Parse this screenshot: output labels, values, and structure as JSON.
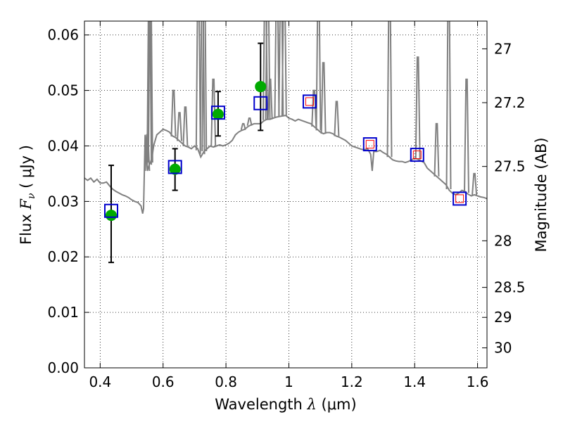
{
  "chart_data": {
    "type": "scatter",
    "xlabel": {
      "prefix": "Wavelength ",
      "symbol": "λ",
      "units": " (μm)"
    },
    "ylabel": {
      "prefix": "Flux ",
      "symbol": "F",
      "subscript": "ν",
      "units": " ( μJy )"
    },
    "y2label": "Magnitude (AB)",
    "xlim": [
      0.35,
      1.63
    ],
    "ylim": [
      0.0,
      0.0625
    ],
    "grid": true,
    "x_ticks": [
      0.4,
      0.6,
      0.8,
      1.0,
      1.2,
      1.4,
      1.6
    ],
    "x_tick_labels": [
      "0.4",
      "0.6",
      "0.8",
      "1",
      "1.2",
      "1.4",
      "1.6"
    ],
    "y_ticks": [
      0.0,
      0.01,
      0.02,
      0.03,
      0.04,
      0.05,
      0.06
    ],
    "y_tick_labels": [
      "0.00",
      "0.01",
      "0.02",
      "0.03",
      "0.04",
      "0.05",
      "0.06"
    ],
    "y2_ticks": [
      {
        "label": "27",
        "flux": 0.0575
      },
      {
        "label": "27.2",
        "flux": 0.0478
      },
      {
        "label": "27.5",
        "flux": 0.0363
      },
      {
        "label": "28",
        "flux": 0.0229
      },
      {
        "label": "28.5",
        "flux": 0.0145
      },
      {
        "label": "29",
        "flux": 0.0091
      },
      {
        "label": "30",
        "flux": 0.0036
      }
    ],
    "colors": {
      "sed": "#808080",
      "observed": "#00aa00",
      "model_box": "#0000cc",
      "inner_box": "#ff0000",
      "errorbar": "#000000"
    },
    "series": [
      {
        "kind": "sed_line",
        "points": [
          [
            0.35,
            0.0342
          ],
          [
            0.36,
            0.0338
          ],
          [
            0.37,
            0.0342
          ],
          [
            0.38,
            0.0335
          ],
          [
            0.39,
            0.034
          ],
          [
            0.4,
            0.0333
          ],
          [
            0.41,
            0.0333
          ],
          [
            0.42,
            0.0335
          ],
          [
            0.43,
            0.0328
          ],
          [
            0.44,
            0.0322
          ],
          [
            0.45,
            0.0318
          ],
          [
            0.46,
            0.0315
          ],
          [
            0.47,
            0.0312
          ],
          [
            0.48,
            0.031
          ],
          [
            0.49,
            0.0307
          ],
          [
            0.5,
            0.0303
          ],
          [
            0.51,
            0.03
          ],
          [
            0.52,
            0.0298
          ],
          [
            0.53,
            0.0292
          ],
          [
            0.535,
            0.0278
          ],
          [
            0.538,
            0.0287
          ],
          [
            0.541,
            0.037
          ],
          [
            0.543,
            0.042
          ],
          [
            0.55,
            0.0355
          ],
          [
            0.555,
            0.0365
          ],
          [
            0.56,
            0.037
          ],
          [
            0.565,
            0.038
          ],
          [
            0.57,
            0.04
          ],
          [
            0.575,
            0.041
          ],
          [
            0.58,
            0.042
          ],
          [
            0.59,
            0.0425
          ],
          [
            0.6,
            0.043
          ],
          [
            0.61,
            0.0428
          ],
          [
            0.62,
            0.0425
          ],
          [
            0.63,
            0.0418
          ],
          [
            0.64,
            0.0415
          ],
          [
            0.65,
            0.041
          ],
          [
            0.66,
            0.0405
          ],
          [
            0.67,
            0.04
          ],
          [
            0.68,
            0.0398
          ],
          [
            0.69,
            0.0395
          ],
          [
            0.7,
            0.04
          ],
          [
            0.71,
            0.0395
          ],
          [
            0.72,
            0.038
          ],
          [
            0.73,
            0.039
          ],
          [
            0.74,
            0.0395
          ],
          [
            0.75,
            0.04
          ],
          [
            0.76,
            0.0398
          ],
          [
            0.77,
            0.04
          ],
          [
            0.78,
            0.0402
          ],
          [
            0.79,
            0.04
          ],
          [
            0.8,
            0.0402
          ],
          [
            0.81,
            0.0405
          ],
          [
            0.82,
            0.041
          ],
          [
            0.83,
            0.042
          ],
          [
            0.84,
            0.0425
          ],
          [
            0.85,
            0.0428
          ],
          [
            0.86,
            0.043
          ],
          [
            0.87,
            0.0435
          ],
          [
            0.88,
            0.0438
          ],
          [
            0.89,
            0.044
          ],
          [
            0.9,
            0.044
          ],
          [
            0.91,
            0.044
          ],
          [
            0.92,
            0.0445
          ],
          [
            0.93,
            0.0448
          ],
          [
            0.94,
            0.0448
          ],
          [
            0.95,
            0.045
          ],
          [
            0.96,
            0.0452
          ],
          [
            0.97,
            0.0453
          ],
          [
            0.98,
            0.0454
          ],
          [
            0.99,
            0.0455
          ],
          [
            1.0,
            0.045
          ],
          [
            1.01,
            0.0448
          ],
          [
            1.02,
            0.0445
          ],
          [
            1.03,
            0.0448
          ],
          [
            1.04,
            0.0446
          ],
          [
            1.05,
            0.0444
          ],
          [
            1.06,
            0.0442
          ],
          [
            1.07,
            0.044
          ],
          [
            1.08,
            0.0435
          ],
          [
            1.09,
            0.043
          ],
          [
            1.1,
            0.0425
          ],
          [
            1.11,
            0.0422
          ],
          [
            1.12,
            0.0424
          ],
          [
            1.13,
            0.0424
          ],
          [
            1.14,
            0.0422
          ],
          [
            1.15,
            0.0418
          ],
          [
            1.16,
            0.0416
          ],
          [
            1.17,
            0.0413
          ],
          [
            1.18,
            0.041
          ],
          [
            1.19,
            0.0405
          ],
          [
            1.2,
            0.04
          ],
          [
            1.21,
            0.0398
          ],
          [
            1.22,
            0.0396
          ],
          [
            1.23,
            0.0394
          ],
          [
            1.24,
            0.0393
          ],
          [
            1.25,
            0.0395
          ],
          [
            1.26,
            0.0385
          ],
          [
            1.265,
            0.0355
          ],
          [
            1.27,
            0.039
          ],
          [
            1.28,
            0.039
          ],
          [
            1.29,
            0.0392
          ],
          [
            1.3,
            0.0388
          ],
          [
            1.31,
            0.0385
          ],
          [
            1.32,
            0.038
          ],
          [
            1.33,
            0.0375
          ],
          [
            1.34,
            0.0373
          ],
          [
            1.35,
            0.0372
          ],
          [
            1.36,
            0.0372
          ],
          [
            1.37,
            0.037
          ],
          [
            1.38,
            0.0372
          ],
          [
            1.39,
            0.0375
          ],
          [
            1.4,
            0.0378
          ],
          [
            1.41,
            0.0376
          ],
          [
            1.42,
            0.0373
          ],
          [
            1.43,
            0.037
          ],
          [
            1.44,
            0.036
          ],
          [
            1.45,
            0.0355
          ],
          [
            1.46,
            0.035
          ],
          [
            1.47,
            0.0345
          ],
          [
            1.48,
            0.034
          ],
          [
            1.49,
            0.0335
          ],
          [
            1.5,
            0.033
          ],
          [
            1.51,
            0.032
          ],
          [
            1.52,
            0.0315
          ],
          [
            1.53,
            0.0312
          ],
          [
            1.54,
            0.0315
          ],
          [
            1.55,
            0.032
          ],
          [
            1.56,
            0.0318
          ],
          [
            1.57,
            0.0313
          ],
          [
            1.58,
            0.031
          ],
          [
            1.59,
            0.0312
          ],
          [
            1.6,
            0.031
          ],
          [
            1.61,
            0.0308
          ],
          [
            1.62,
            0.0307
          ],
          [
            1.63,
            0.0305
          ]
        ]
      }
    ],
    "emission_spikes": [
      [
        0.55,
        0.042
      ],
      [
        0.556,
        0.07
      ],
      [
        0.56,
        0.07
      ],
      [
        0.633,
        0.05
      ],
      [
        0.652,
        0.046
      ],
      [
        0.671,
        0.047
      ],
      [
        0.712,
        0.07
      ],
      [
        0.725,
        0.07
      ],
      [
        0.731,
        0.07
      ],
      [
        0.76,
        0.052
      ],
      [
        0.855,
        0.044
      ],
      [
        0.875,
        0.045
      ],
      [
        0.925,
        0.07
      ],
      [
        0.933,
        0.07
      ],
      [
        0.94,
        0.052
      ],
      [
        0.962,
        0.07
      ],
      [
        0.975,
        0.07
      ],
      [
        0.985,
        0.07
      ],
      [
        1.08,
        0.05
      ],
      [
        1.094,
        0.07
      ],
      [
        1.11,
        0.055
      ],
      [
        1.152,
        0.048
      ],
      [
        1.32,
        0.07
      ],
      [
        1.41,
        0.056
      ],
      [
        1.47,
        0.044
      ],
      [
        1.508,
        0.07
      ],
      [
        1.565,
        0.052
      ],
      [
        1.59,
        0.035
      ]
    ],
    "observed_points": [
      {
        "x": 0.435,
        "y": 0.0275,
        "yerr_low": 0.019,
        "yerr_high": 0.0365
      },
      {
        "x": 0.638,
        "y": 0.0358,
        "yerr_low": 0.032,
        "yerr_high": 0.0395
      },
      {
        "x": 0.775,
        "y": 0.0457,
        "yerr_low": 0.0418,
        "yerr_high": 0.0498
      },
      {
        "x": 0.91,
        "y": 0.0507,
        "yerr_low": 0.0428,
        "yerr_high": 0.0585
      }
    ],
    "model_points": [
      {
        "x": 0.435,
        "y": 0.0283,
        "inner": false
      },
      {
        "x": 0.638,
        "y": 0.0362,
        "inner": false
      },
      {
        "x": 0.775,
        "y": 0.046,
        "inner": false
      },
      {
        "x": 0.91,
        "y": 0.0477,
        "inner": false
      },
      {
        "x": 1.066,
        "y": 0.048,
        "inner": true
      },
      {
        "x": 1.258,
        "y": 0.0403,
        "inner": true
      },
      {
        "x": 1.408,
        "y": 0.0384,
        "inner": true
      },
      {
        "x": 1.543,
        "y": 0.0305,
        "inner": true
      }
    ]
  }
}
